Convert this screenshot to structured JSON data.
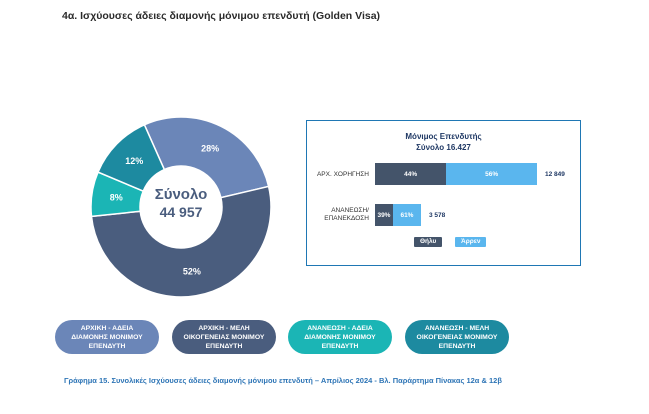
{
  "page_title": "4α. Ισχύουσες άδειες διαμονής μόνιμου επενδυτή (Golden Visa)",
  "colors": {
    "initial": "#6b86b8",
    "members": "#4a5d7e",
    "renewal": "#1bb5b5",
    "renewal_members": "#1d8aa0",
    "female": "#44546a",
    "male": "#5ab6ee"
  },
  "chart_data": [
    {
      "type": "pie",
      "center_title": "Σύνολο",
      "center_value": "44 957",
      "slices": [
        {
          "key": "initial",
          "label": "28%",
          "value": 28
        },
        {
          "key": "members",
          "label": "52%",
          "value": 52
        },
        {
          "key": "renewal",
          "label": "8%",
          "value": 8
        },
        {
          "key": "renewal_members",
          "label": "12%",
          "value": 12
        }
      ]
    },
    {
      "type": "bar",
      "title_line1": "Μόνιμος Επενδυτής",
      "title_line2": "Σύνολο 16.427",
      "categories": [
        {
          "label_lines": [
            "ΑΡΧ. ΧΟΡΗΓΗΣΗ"
          ],
          "total": "12 849",
          "female_pct": 44,
          "male_pct": 56,
          "female_label": "44%",
          "male_label": "56%"
        },
        {
          "label_lines": [
            "ΑΝΑΝΕΩΣΗ/",
            "ΕΠΑΝΕΚΔΟΣΗ"
          ],
          "total": "3 578",
          "female_pct": 39,
          "male_pct": 61,
          "female_label": "39%",
          "male_label": "61%"
        }
      ],
      "series": [
        {
          "name": "Θήλυ"
        },
        {
          "name": "Άρρεν"
        }
      ]
    }
  ],
  "legend_pills": [
    {
      "label": "ΑΡΧΙΚΗ - ΑΔΕΙΑ ΔΙΑΜΟΝΗΣ ΜΟΝΙΜΟΥ ΕΠΕΝΔΥΤΗ"
    },
    {
      "label": "ΑΡΧΙΚΗ - ΜΕΛΗ ΟΙΚΟΓΕΝΕΙΑΣ ΜΟΝΙΜΟΥ ΕΠΕΝΔΥΤΗ"
    },
    {
      "label": "ΑΝΑΝΕΩΣΗ - ΑΔΕΙΑ ΔΙΑΜΟΝΗΣ ΜΟΝΙΜΟΥ ΕΠΕΝΔΥΤΗ"
    },
    {
      "label": "ΑΝΑΝΕΩΣΗ - ΜΕΛΗ ΟΙΚΟΓΕΝΕΙΑΣ ΜΟΝΙΜΟΥ ΕΠΕΝΔΥΤΗ"
    }
  ],
  "caption": "Γράφημα 15. Συνολικές Ισχύουσες άδειες διαμονής μόνιμου επενδυτή – Απρίλιος 2024 - Βλ. Παράρτημα  Πίνακας 12α & 12β"
}
